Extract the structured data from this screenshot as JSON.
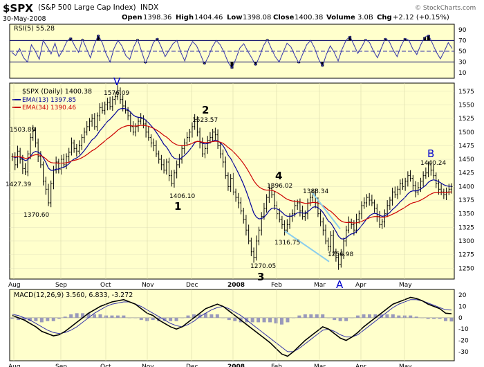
{
  "header": {
    "symbol": "$SPX",
    "name": "(S&P 500 Large Cap Index)",
    "exchange": "INDX",
    "date": "30-May-2008",
    "open_label": "Open",
    "open": "1398.36",
    "high_label": "High",
    "high": "1404.46",
    "low_label": "Low",
    "low": "1398.08",
    "close_label": "Close",
    "close": "1400.38",
    "volume_label": "Volume",
    "volume": "3.0B",
    "chg_label": "Chg",
    "chg": "+2.12 (+0.15%)",
    "watermark": "© StockCharts.com"
  },
  "colors": {
    "panel_bg": "#ffffcc",
    "price_bars": "#000000",
    "ema13": "#000099",
    "ema34": "#cc0000",
    "rsi_line": "#3333aa",
    "trendline": "#88ccee",
    "wave_labels": "#000000",
    "wave_labels_ab": "#0000cc"
  },
  "chart_data": [
    {
      "type": "line",
      "panel": "rsi",
      "title": "RSI(5) 55.28",
      "ylim": [
        0,
        100
      ],
      "y_ticks": [
        "90",
        "70",
        "50",
        "30",
        "10"
      ],
      "levels": [
        70,
        50,
        30
      ],
      "series": [
        {
          "name": "RSI(5)",
          "values": [
            48,
            42,
            55,
            38,
            30,
            62,
            50,
            35,
            70,
            58,
            45,
            65,
            40,
            52,
            68,
            75,
            60,
            48,
            72,
            55,
            38,
            62,
            80,
            66,
            45,
            30,
            55,
            70,
            60,
            42,
            35,
            58,
            72,
            50,
            28,
            45,
            66,
            74,
            58,
            40,
            52,
            64,
            70,
            48,
            32,
            55,
            68,
            60,
            44,
            26,
            40,
            58,
            70,
            62,
            48,
            30,
            18,
            36,
            56,
            64,
            50,
            38,
            24,
            40,
            60,
            72,
            55,
            40,
            30,
            48,
            65,
            58,
            42,
            28,
            45,
            62,
            70,
            56,
            36,
            22,
            44,
            60,
            48,
            32,
            54,
            70,
            78,
            62,
            46,
            58,
            72,
            66,
            50,
            38,
            56,
            74,
            68,
            52,
            40,
            60,
            74,
            70,
            54,
            44,
            62,
            76,
            80,
            64,
            48,
            36,
            50,
            66,
            55
          ]
        }
      ]
    },
    {
      "type": "line",
      "panel": "price",
      "title": "$SPX (Daily) 1400.38",
      "ylim": [
        1230,
        1590
      ],
      "y_ticks": [
        "1575",
        "1550",
        "1525",
        "1500",
        "1475",
        "1450",
        "1425",
        "1400",
        "1375",
        "1350",
        "1325",
        "1300",
        "1275",
        "1250"
      ],
      "x_ticks": [
        "Aug",
        "Sep",
        "Oct",
        "Nov",
        "Dec",
        "2008",
        "Feb",
        "Mar",
        "Apr",
        "May"
      ],
      "series": [
        {
          "name": "$SPX (Daily) 1400.38",
          "values": [
            1455,
            1440,
            1465,
            1450,
            1433,
            1427,
            1460,
            1490,
            1503,
            1480,
            1455,
            1440,
            1410,
            1395,
            1370,
            1405,
            1430,
            1445,
            1432,
            1450,
            1440,
            1455,
            1463,
            1480,
            1470,
            1465,
            1475,
            1490,
            1500,
            1510,
            1520,
            1525,
            1510,
            1530,
            1545,
            1540,
            1550,
            1555,
            1547,
            1560,
            1565,
            1576,
            1560,
            1548,
            1540,
            1530,
            1510,
            1500,
            1510,
            1520,
            1525,
            1515,
            1500,
            1490,
            1480,
            1475,
            1460,
            1450,
            1440,
            1430,
            1445,
            1420,
            1406,
            1425,
            1440,
            1450,
            1470,
            1480,
            1490,
            1500,
            1510,
            1523,
            1500,
            1480,
            1460,
            1470,
            1485,
            1490,
            1500,
            1495,
            1475,
            1460,
            1445,
            1420,
            1400,
            1415,
            1390,
            1380,
            1370,
            1355,
            1340,
            1320,
            1300,
            1280,
            1270,
            1300,
            1320,
            1345,
            1360,
            1380,
            1396,
            1385,
            1365,
            1350,
            1340,
            1330,
            1320,
            1330,
            1345,
            1350,
            1365,
            1370,
            1355,
            1345,
            1350,
            1370,
            1380,
            1388,
            1370,
            1350,
            1335,
            1320,
            1300,
            1290,
            1310,
            1280,
            1270,
            1257,
            1275,
            1300,
            1320,
            1335,
            1330,
            1320,
            1340,
            1350,
            1365,
            1370,
            1380,
            1375,
            1370,
            1360,
            1345,
            1330,
            1335,
            1350,
            1365,
            1375,
            1390,
            1385,
            1395,
            1405,
            1400,
            1410,
            1420,
            1415,
            1402,
            1390,
            1398,
            1410,
            1420,
            1425,
            1440,
            1430,
            1420,
            1405,
            1395,
            1390,
            1385,
            1390,
            1395,
            1400
          ]
        },
        {
          "name": "EMA(13) 1397.85",
          "values": []
        },
        {
          "name": "EMA(34) 1390.46",
          "values": []
        }
      ],
      "annotations": [
        {
          "text": "1576.09",
          "kind": "price"
        },
        {
          "text": "1503.89",
          "kind": "price"
        },
        {
          "text": "1427.39",
          "kind": "price"
        },
        {
          "text": "1370.60",
          "kind": "price"
        },
        {
          "text": "1523.57",
          "kind": "price"
        },
        {
          "text": "1406.10",
          "kind": "price"
        },
        {
          "text": "1396.02",
          "kind": "price"
        },
        {
          "text": "1388.34",
          "kind": "price"
        },
        {
          "text": "1316.75",
          "kind": "price"
        },
        {
          "text": "1270.05",
          "kind": "price"
        },
        {
          "text": "1256.98",
          "kind": "price"
        },
        {
          "text": "1440.24",
          "kind": "price"
        },
        {
          "text": "V",
          "kind": "wave"
        },
        {
          "text": "1",
          "kind": "wave"
        },
        {
          "text": "2",
          "kind": "wave"
        },
        {
          "text": "3",
          "kind": "wave"
        },
        {
          "text": "4",
          "kind": "wave"
        },
        {
          "text": "A",
          "kind": "wave"
        },
        {
          "text": "B",
          "kind": "wave"
        }
      ]
    },
    {
      "type": "line",
      "panel": "macd",
      "title": "MACD(12,26,9) 3.560, 6.833, -3.272",
      "ylim": [
        -38,
        25
      ],
      "y_ticks": [
        "20",
        "10",
        "0",
        "-10",
        "-20",
        "-30"
      ],
      "series": [
        {
          "name": "MACD",
          "values": [
            2,
            0,
            -2,
            -5,
            -8,
            -12,
            -14,
            -16,
            -15,
            -12,
            -8,
            -4,
            0,
            4,
            7,
            10,
            12,
            14,
            15,
            16,
            14,
            12,
            8,
            4,
            2,
            -2,
            -5,
            -8,
            -10,
            -8,
            -4,
            0,
            4,
            8,
            10,
            12,
            10,
            6,
            2,
            -2,
            -6,
            -10,
            -14,
            -18,
            -22,
            -27,
            -32,
            -34,
            -30,
            -25,
            -20,
            -16,
            -12,
            -8,
            -10,
            -14,
            -18,
            -20,
            -17,
            -13,
            -8,
            -4,
            0,
            4,
            8,
            12,
            14,
            16,
            18,
            17,
            15,
            12,
            10,
            8,
            4,
            3.56
          ]
        },
        {
          "name": "Signal",
          "values": [
            3,
            2,
            0,
            -2,
            -5,
            -8,
            -11,
            -13,
            -14,
            -13,
            -11,
            -8,
            -4,
            0,
            4,
            7,
            10,
            12,
            13,
            14,
            14,
            12,
            10,
            7,
            4,
            1,
            -2,
            -5,
            -7,
            -8,
            -6,
            -3,
            1,
            4,
            7,
            9,
            10,
            8,
            5,
            2,
            -2,
            -6,
            -10,
            -14,
            -18,
            -22,
            -26,
            -30,
            -30,
            -27,
            -23,
            -19,
            -15,
            -11,
            -10,
            -12,
            -15,
            -17,
            -17,
            -15,
            -11,
            -7,
            -3,
            1,
            5,
            9,
            12,
            14,
            16,
            16,
            15,
            13,
            11,
            9,
            7,
            6.833
          ]
        }
      ]
    }
  ]
}
